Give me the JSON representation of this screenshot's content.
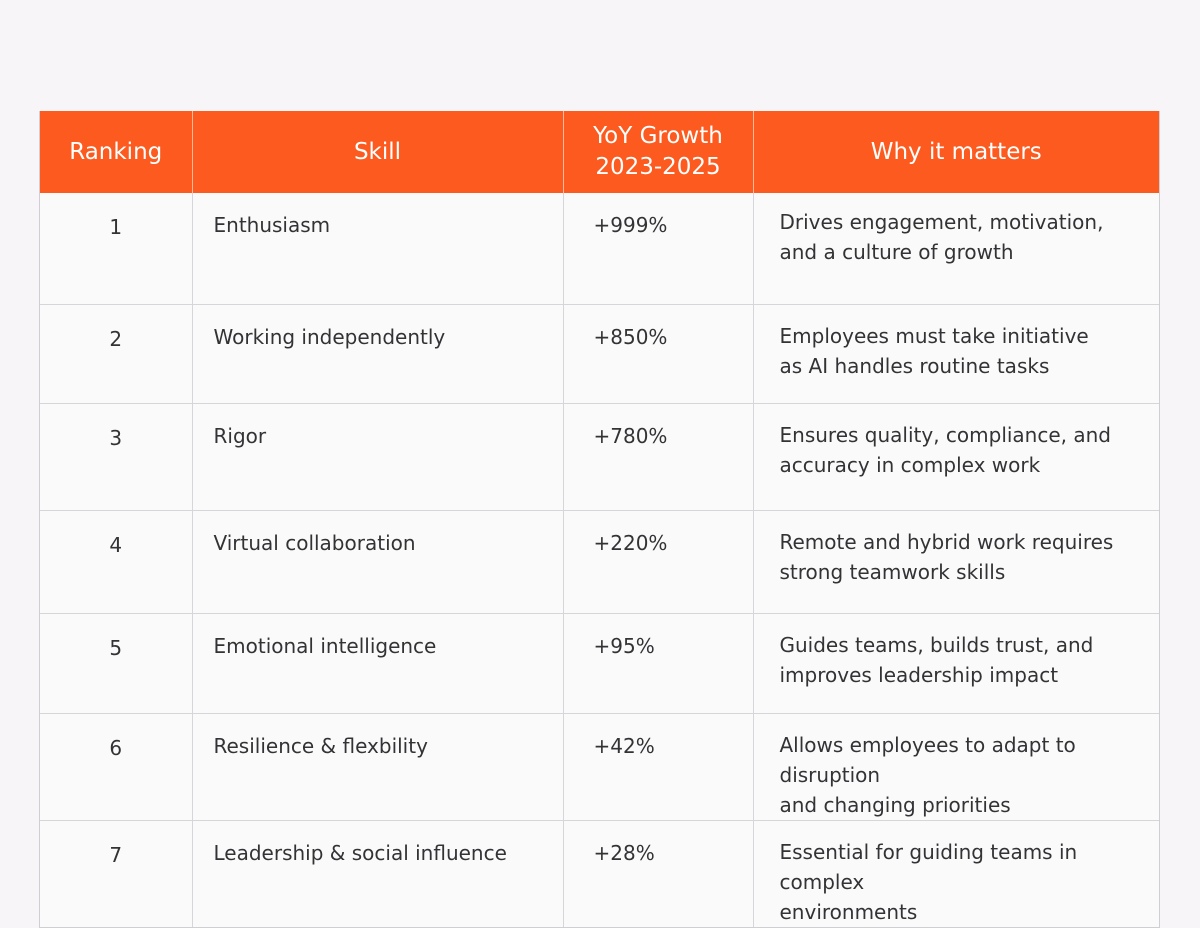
{
  "table": {
    "headers": {
      "ranking": "Ranking",
      "skill": "Skill",
      "growth_line1": "YoY Growth",
      "growth_line2": "2023-2025",
      "why": "Why it matters"
    },
    "rows": [
      {
        "rank": "1",
        "skill": "Enthusiasm",
        "growth": "+999%",
        "why_l1": "Drives engagement, motivation,",
        "why_l2": "and a culture of growth"
      },
      {
        "rank": "2",
        "skill": "Working independently",
        "growth": "+850%",
        "why_l1": "Employees must take initiative",
        "why_l2": "as AI handles routine tasks"
      },
      {
        "rank": "3",
        "skill": "Rigor",
        "growth": "+780%",
        "why_l1": "Ensures quality, compliance, and",
        "why_l2": "accuracy in complex work"
      },
      {
        "rank": "4",
        "skill": "Virtual collaboration",
        "growth": "+220%",
        "why_l1": "Remote and hybrid work requires",
        "why_l2": "strong teamwork skills"
      },
      {
        "rank": "5",
        "skill": "Emotional intelligence",
        "growth": "+95%",
        "why_l1": "Guides teams, builds trust, and",
        "why_l2": "improves leadership impact"
      },
      {
        "rank": "6",
        "skill": "Resilience & flexbility",
        "growth": "+42%",
        "why_l1": "Allows employees to adapt to disruption",
        "why_l2": "and changing priorities"
      },
      {
        "rank": "7",
        "skill": "Leadership & social influence",
        "growth": "+28%",
        "why_l1": "Essential for guiding teams in complex",
        "why_l2": "environments"
      }
    ]
  },
  "colors": {
    "header_bg": "#fc5a1e",
    "header_text": "#ffffff",
    "page_bg": "#f7f5f7"
  }
}
